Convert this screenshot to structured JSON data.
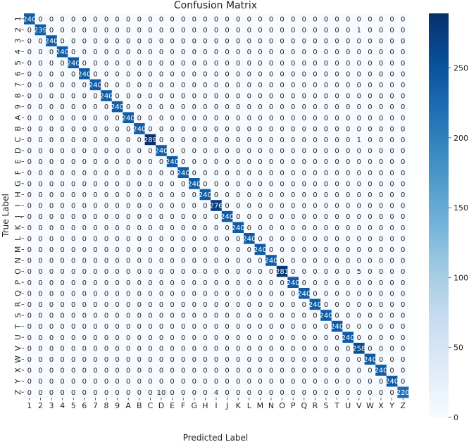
{
  "chart_data": {
    "type": "heatmap",
    "title": "Confusion Matrix",
    "xlabel": "Predicted Label",
    "ylabel": "True Label",
    "labels": [
      "1",
      "2",
      "3",
      "4",
      "5",
      "6",
      "7",
      "8",
      "9",
      "A",
      "B",
      "C",
      "D",
      "E",
      "F",
      "G",
      "H",
      "I",
      "J",
      "K",
      "L",
      "M",
      "N",
      "O",
      "P",
      "Q",
      "R",
      "S",
      "T",
      "U",
      "V",
      "W",
      "X",
      "Y",
      "Z"
    ],
    "diagonal": [
      240,
      239,
      240,
      240,
      240,
      240,
      240,
      240,
      240,
      240,
      240,
      289,
      240,
      240,
      240,
      240,
      240,
      276,
      240,
      240,
      240,
      240,
      240,
      281,
      240,
      240,
      240,
      240,
      240,
      240,
      258,
      240,
      240,
      240,
      220
    ],
    "off_diagonal": [
      {
        "row": 1,
        "col": 30,
        "value": 1
      },
      {
        "row": 11,
        "col": 30,
        "value": 1
      },
      {
        "row": 23,
        "col": 30,
        "value": 5
      },
      {
        "row": 34,
        "col": 12,
        "value": 10
      },
      {
        "row": 34,
        "col": 17,
        "value": 4
      }
    ],
    "colorbar": {
      "min": 0,
      "max": 289,
      "ticks": [
        0,
        50,
        100,
        150,
        200,
        250
      ],
      "colormap": "Blues",
      "low_color": "#f7fbff",
      "high_color": "#08306b"
    },
    "grid": false,
    "legend": "colorbar-right"
  }
}
